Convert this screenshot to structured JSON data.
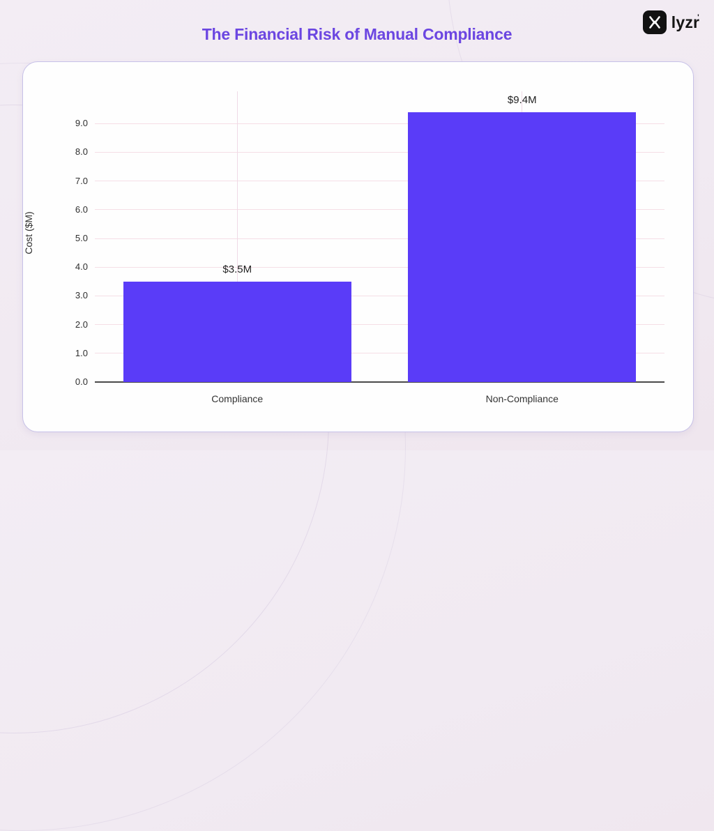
{
  "page": {
    "title": "The Financial Risk of Manual Compliance",
    "title_color": "#6b46e1",
    "brand": {
      "name": "lyzr",
      "trademark_mark": "'"
    }
  },
  "chart_data": {
    "type": "bar",
    "title": "The Financial Risk of Manual Compliance",
    "categories": [
      "Compliance",
      "Non-Compliance"
    ],
    "values": [
      3.5,
      9.4
    ],
    "value_labels": [
      "$3.5M",
      "$9.4M"
    ],
    "xlabel": "",
    "ylabel": "Cost ($M)",
    "ylim": [
      0,
      10.1
    ],
    "yticks": [
      0,
      1,
      2,
      3,
      4,
      5,
      6,
      7,
      8,
      9
    ],
    "ytick_labels": [
      "0.0",
      "1.0",
      "2.0",
      "3.0",
      "4.0",
      "5.0",
      "6.0",
      "7.0",
      "8.0",
      "9.0"
    ],
    "grid": true,
    "legend": "none",
    "colors": {
      "bar": "#5a3cf8",
      "gridline_h": "#f5dee6",
      "gridline_v": "#efdae6",
      "axis_line": "#4a4a4a"
    }
  }
}
